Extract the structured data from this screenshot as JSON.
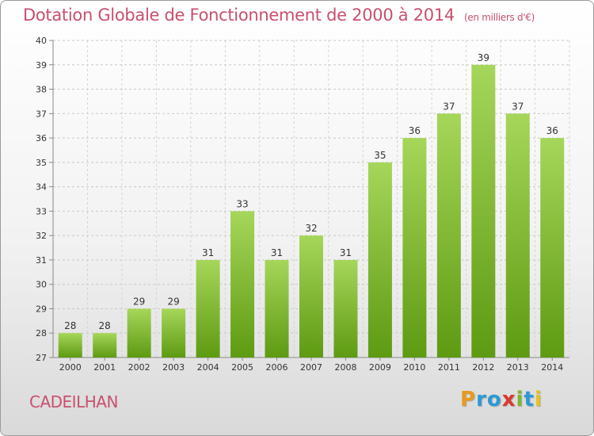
{
  "header": {
    "title": "Dotation Globale de Fonctionnement de 2000 à 2014",
    "subtitle": "(en milliers d'€)"
  },
  "footer": {
    "commune": "CADEILHAN",
    "logo_text": "Proxiti"
  },
  "colors": {
    "title": "#c8506e",
    "bar_top": "#a6d65a",
    "bar_bottom": "#5e9a12",
    "logo": [
      "#e89a1c",
      "#2a9ad6",
      "#2a9ad6",
      "#d93a2a",
      "#7cb82a",
      "#2a9ad6",
      "#e8c21c"
    ]
  },
  "chart_data": {
    "type": "bar",
    "title": "Dotation Globale de Fonctionnement de 2000 à 2014",
    "subtitle": "(en milliers d'€)",
    "categories": [
      "2000",
      "2001",
      "2002",
      "2003",
      "2004",
      "2005",
      "2006",
      "2007",
      "2008",
      "2009",
      "2010",
      "2011",
      "2012",
      "2013",
      "2014"
    ],
    "values": [
      28,
      28,
      29,
      29,
      31,
      33,
      31,
      32,
      31,
      35,
      36,
      37,
      39,
      37,
      36
    ],
    "ylim": [
      27,
      40
    ],
    "yticks": [
      "27",
      "28",
      "29",
      "30",
      "31",
      "32",
      "33",
      "34",
      "35",
      "36",
      "37",
      "38",
      "39",
      "40"
    ],
    "grid": true,
    "legend": "none"
  }
}
